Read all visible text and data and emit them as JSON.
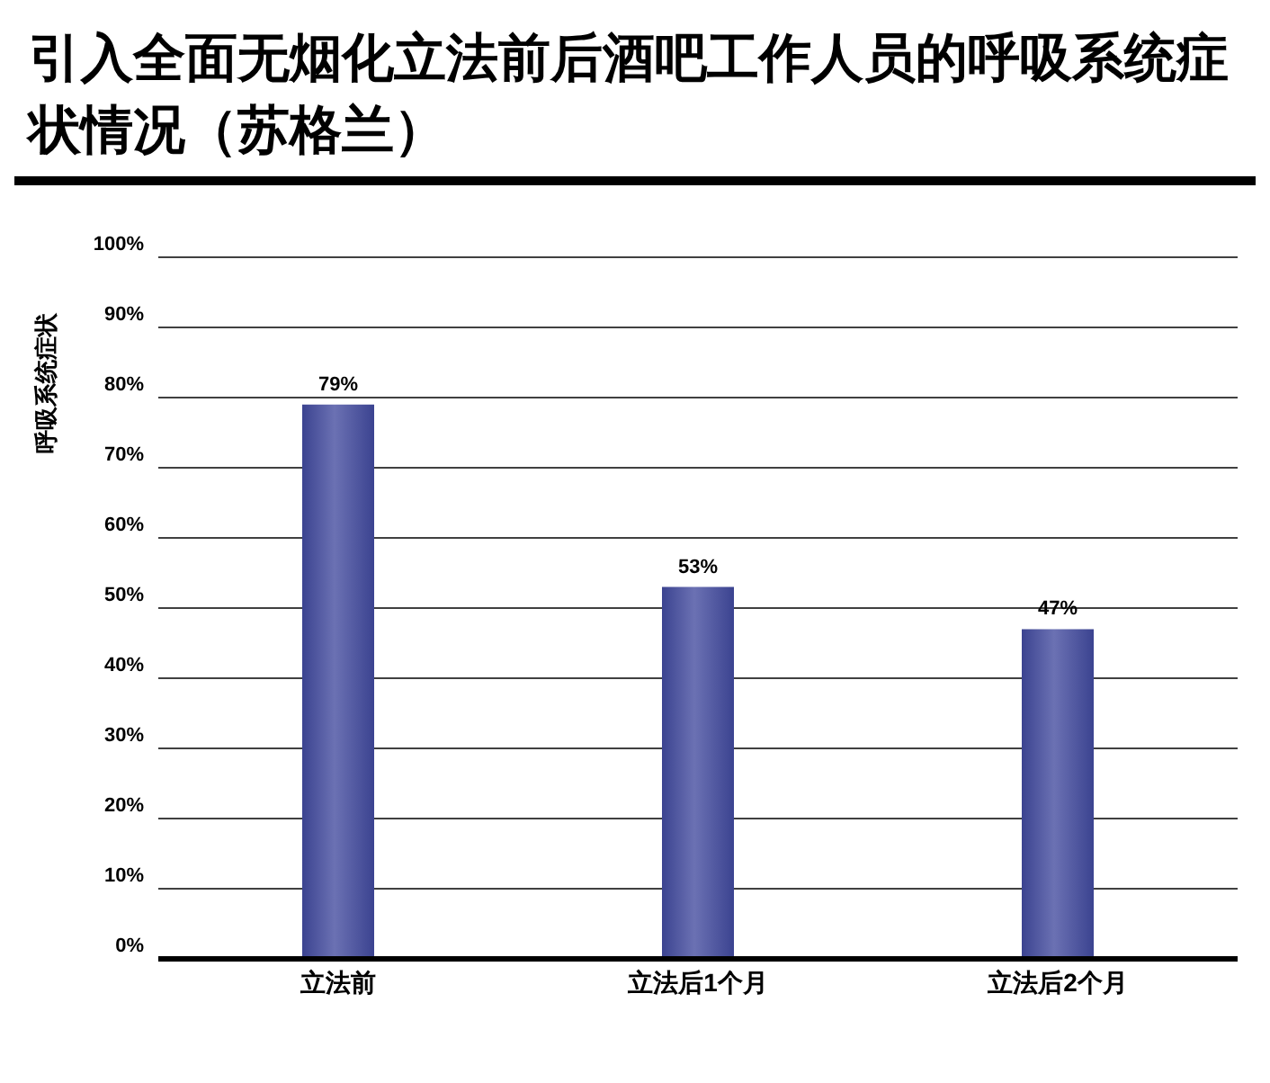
{
  "chart_data": {
    "type": "bar",
    "title": "引入全面无烟化立法前后酒吧工作人员的呼吸系统症状情况（苏格兰）",
    "ylabel": "呼吸系统症状",
    "categories": [
      "立法前",
      "立法后1个月",
      "立法后2个月"
    ],
    "values": [
      79,
      53,
      47
    ],
    "color": "#3b4390",
    "value_labels": [
      "79%",
      "53%",
      "47%"
    ],
    "ylim": [
      0,
      100
    ],
    "yticks": [
      {
        "value": 0,
        "label": "0%"
      },
      {
        "value": 10,
        "label": "10%"
      },
      {
        "value": 20,
        "label": "20%"
      },
      {
        "value": 30,
        "label": "30%"
      },
      {
        "value": 40,
        "label": "40%"
      },
      {
        "value": 50,
        "label": "50%"
      },
      {
        "value": 60,
        "label": "60%"
      },
      {
        "value": 70,
        "label": "70%"
      },
      {
        "value": 80,
        "label": "80%"
      },
      {
        "value": 90,
        "label": "90%"
      },
      {
        "value": 100,
        "label": "100%"
      }
    ],
    "grid": "y",
    "legend": false
  }
}
